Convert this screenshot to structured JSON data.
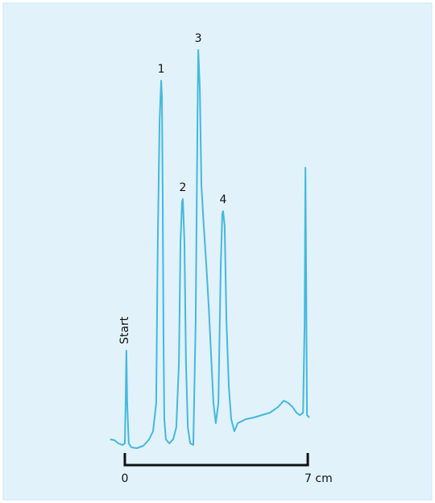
{
  "chart_data": {
    "type": "line",
    "x": [
      -0.56,
      -0.4,
      -0.25,
      -0.09,
      0,
      0.03,
      0.06,
      0.09,
      0.15,
      0.25,
      0.46,
      0.71,
      0.93,
      1.08,
      1.2,
      1.26,
      1.33,
      1.39,
      1.42,
      1.45,
      1.48,
      1.51,
      1.57,
      1.7,
      1.85,
      1.97,
      2.07,
      2.13,
      2.19,
      2.22,
      2.28,
      2.34,
      2.41,
      2.5,
      2.62,
      2.71,
      2.78,
      2.81,
      2.87,
      2.93,
      3.02,
      3.12,
      3.21,
      3.3,
      3.39,
      3.48,
      3.58,
      3.67,
      3.73,
      3.76,
      3.82,
      3.89,
      3.98,
      4.07,
      4.19,
      4.32,
      4.63,
      4.93,
      5.24,
      5.55,
      5.86,
      6.08,
      6.26,
      6.42,
      6.57,
      6.69,
      6.82,
      6.88,
      6.91,
      6.94,
      6.97,
      7.06
    ],
    "series": [
      {
        "color": "#45b8dc",
        "values": [
          3,
          2.8,
          2,
          1.6,
          2,
          12,
          25,
          12,
          2,
          1,
          0.8,
          1.4,
          3,
          5,
          12,
          52,
          82,
          92,
          88,
          62,
          28,
          8,
          3,
          2,
          3,
          6,
          22,
          52,
          62,
          62.6,
          52,
          22,
          6,
          2,
          1.6,
          32,
          82,
          99.6,
          90,
          66,
          56,
          46,
          36,
          24,
          12,
          7,
          12,
          46,
          59,
          59.6,
          56,
          32,
          16,
          8,
          5,
          7,
          8,
          8.4,
          9,
          9.6,
          11,
          12.6,
          12,
          11,
          9.6,
          9,
          9.6,
          32,
          70.4,
          42,
          9,
          8.4
        ]
      }
    ],
    "xlim": [
      -0.6,
      7.1
    ],
    "xticks": [
      0,
      {
        "value": 7,
        "label": "7 cm"
      }
    ],
    "ylim": [
      0,
      100
    ],
    "annotations": [
      {
        "text": "Start",
        "x": 0.06,
        "y": 25
      },
      {
        "text": "1",
        "x": 1.39,
        "y": 92
      },
      {
        "text": "2",
        "x": 2.22,
        "y": 62.6
      },
      {
        "text": "3",
        "x": 2.81,
        "y": 99.6
      },
      {
        "text": "4",
        "x": 3.76,
        "y": 59.6
      }
    ]
  }
}
